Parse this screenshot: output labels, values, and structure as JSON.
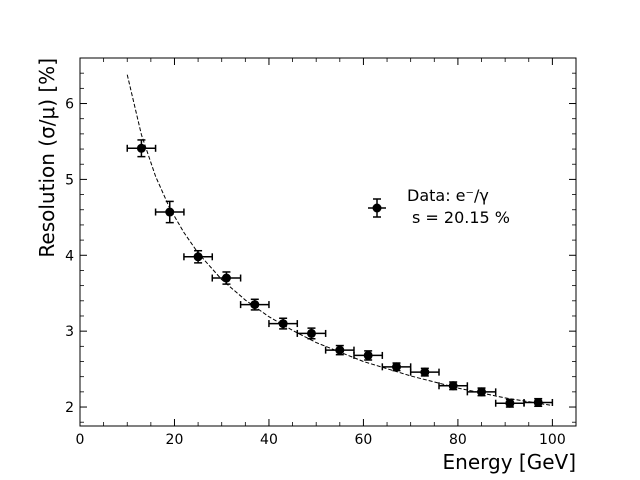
{
  "chart_data": {
    "type": "scatter",
    "title": "",
    "xlabel": "Energy [GeV]",
    "ylabel": "Resolution (σ/μ) [%]",
    "xlim": [
      0,
      105
    ],
    "ylim": [
      1.75,
      6.6
    ],
    "x_ticks": [
      0,
      20,
      40,
      60,
      80,
      100
    ],
    "x_tick_labels": [
      "0",
      "20",
      "40",
      "60",
      "80",
      "100"
    ],
    "y_ticks": [
      2,
      3,
      4,
      5,
      6
    ],
    "y_tick_labels": [
      "2",
      "3",
      "4",
      "5",
      "6"
    ],
    "x_minor_step": 5,
    "y_minor_step": 0.2,
    "grid": false,
    "series": [
      {
        "name": "Data: e⁻/γ",
        "marker": "circle",
        "color": "#000000",
        "x": [
          13,
          19,
          25,
          31,
          37,
          43,
          49,
          55,
          61,
          67,
          73,
          79,
          85,
          91,
          97
        ],
        "y": [
          5.41,
          4.57,
          3.98,
          3.7,
          3.35,
          3.1,
          2.97,
          2.75,
          2.68,
          2.53,
          2.46,
          2.28,
          2.2,
          2.05,
          2.06
        ],
        "x_err": 3,
        "y_err": [
          0.11,
          0.14,
          0.08,
          0.08,
          0.07,
          0.07,
          0.07,
          0.06,
          0.06,
          0.05,
          0.05,
          0.05,
          0.05,
          0.05,
          0.05
        ]
      }
    ],
    "fit": {
      "name": "fit",
      "style": "dashed",
      "color": "#000000",
      "x_range": [
        10,
        100
      ],
      "x": [
        10,
        13,
        16,
        19,
        22,
        25,
        30,
        35,
        40,
        45,
        50,
        60,
        70,
        80,
        90,
        100
      ],
      "y": [
        6.38,
        5.59,
        5.04,
        4.62,
        4.3,
        4.03,
        3.68,
        3.41,
        3.19,
        3.01,
        2.85,
        2.6,
        2.41,
        2.25,
        2.12,
        2.02
      ]
    },
    "legend": {
      "position": "center-right",
      "label_line1": "Data: e⁻/γ",
      "label_line2": "s = 20.15 %"
    }
  }
}
